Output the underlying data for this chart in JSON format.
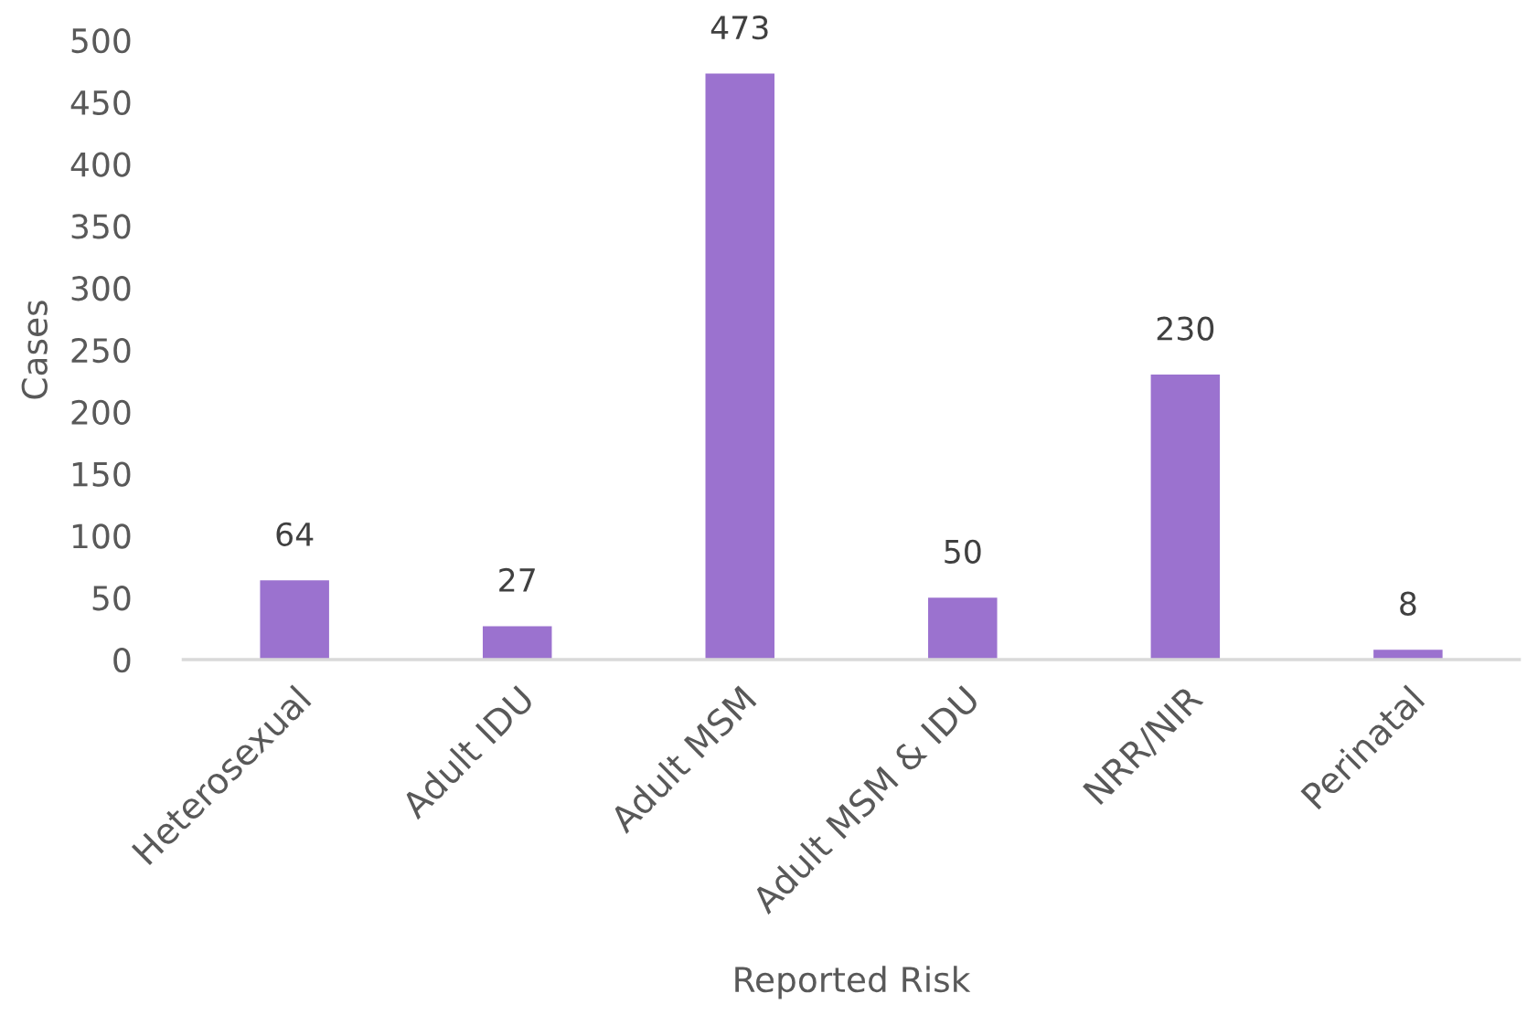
{
  "chart_data": {
    "type": "bar",
    "xlabel": "Reported Risk",
    "ylabel": "Cases",
    "categories": [
      "Heterosexual",
      "Adult IDU",
      "Adult MSM",
      "Adult MSM & IDU",
      "NRR/NIR",
      "Perinatal"
    ],
    "values": [
      64,
      27,
      473,
      50,
      230,
      8
    ],
    "color": "#9b72cf",
    "ylim": [
      0,
      500
    ],
    "yticks": [
      0,
      50,
      100,
      150,
      200,
      250,
      300,
      350,
      400,
      450,
      500
    ],
    "data_labels": true,
    "grid": false,
    "legend": false
  }
}
